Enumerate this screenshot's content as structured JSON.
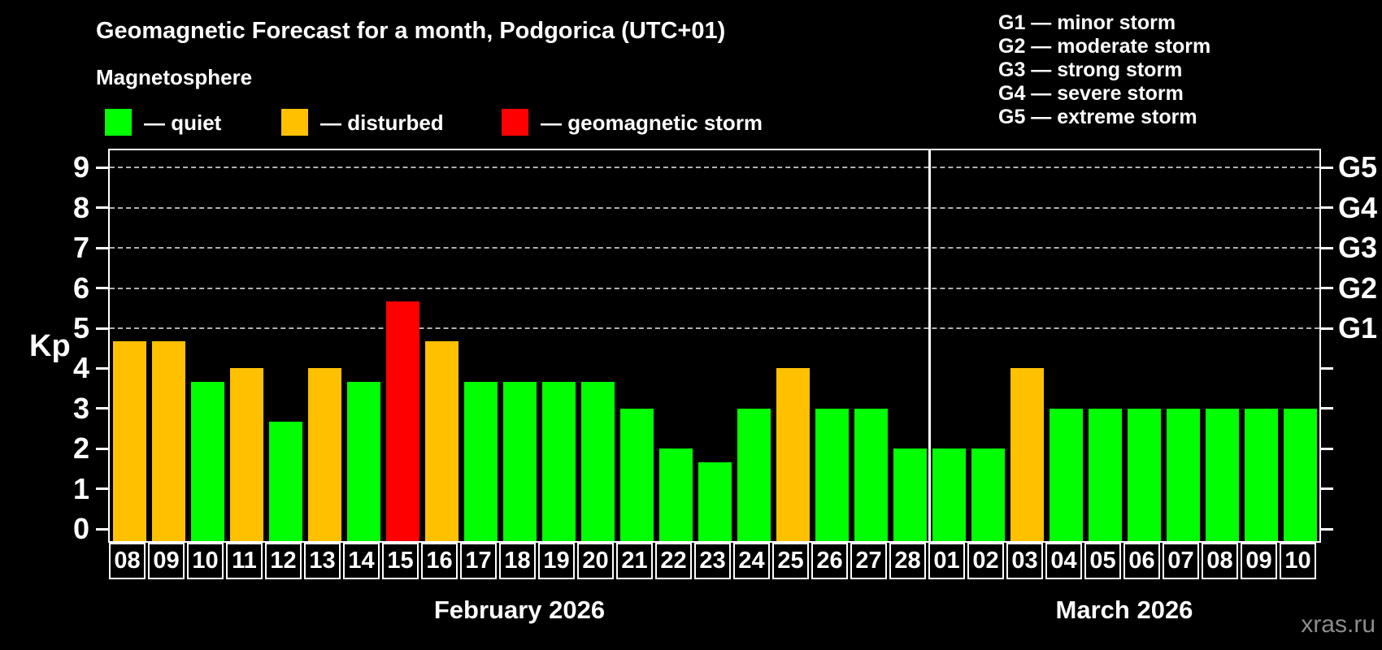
{
  "title": "Geomagnetic Forecast for a month, Podgorica (UTC+01)",
  "subtitle": "Magnetosphere",
  "bar_legend": [
    {
      "name": "quiet",
      "label": "— quiet",
      "color": "#00ff00"
    },
    {
      "name": "disturbed",
      "label": "— disturbed",
      "color": "#ffc000"
    },
    {
      "name": "storm",
      "label": "— geomagnetic storm",
      "color": "#ff0000"
    }
  ],
  "g_scale_legend": [
    {
      "label": "G1 — minor storm"
    },
    {
      "label": "G2 — moderate storm"
    },
    {
      "label": "G3 — strong storm"
    },
    {
      "label": "G4 — severe storm"
    },
    {
      "label": "G5 — extreme storm"
    }
  ],
  "watermark": "xras.ru",
  "chart_data": {
    "type": "bar",
    "title": "Geomagnetic Forecast for a month, Podgorica (UTC+01)",
    "xlabel": "",
    "ylabel": "Kp",
    "ylim": [
      0,
      9
    ],
    "yticks": [
      0,
      1,
      2,
      3,
      4,
      5,
      6,
      7,
      8,
      9
    ],
    "gridlines_at": [
      5,
      6,
      7,
      8,
      9
    ],
    "grid_style": "horizontal dashed at Kp 5–9",
    "legend_position": "top",
    "right_axis_labels": [
      {
        "kp": 5,
        "label": "G1"
      },
      {
        "kp": 6,
        "label": "G2"
      },
      {
        "kp": 7,
        "label": "G3"
      },
      {
        "kp": 8,
        "label": "G4"
      },
      {
        "kp": 9,
        "label": "G5"
      }
    ],
    "months": [
      {
        "label": "February 2026",
        "days": 21
      },
      {
        "label": "March 2026",
        "days": 10
      }
    ],
    "categories": [
      "08",
      "09",
      "10",
      "11",
      "12",
      "13",
      "14",
      "15",
      "16",
      "17",
      "18",
      "19",
      "20",
      "21",
      "22",
      "23",
      "24",
      "25",
      "26",
      "27",
      "28",
      "01",
      "02",
      "03",
      "04",
      "05",
      "06",
      "07",
      "08",
      "09",
      "10"
    ],
    "values": [
      4.67,
      4.67,
      3.67,
      4.0,
      2.67,
      4.0,
      3.67,
      5.67,
      4.67,
      3.67,
      3.67,
      3.67,
      3.67,
      3.0,
      2.0,
      1.67,
      3.0,
      4.0,
      3.0,
      3.0,
      2.0,
      2.0,
      2.0,
      4.0,
      3.0,
      3.0,
      3.0,
      3.0,
      3.0,
      3.0,
      3.0
    ],
    "statuses": [
      "disturbed",
      "disturbed",
      "quiet",
      "disturbed",
      "quiet",
      "disturbed",
      "quiet",
      "storm",
      "disturbed",
      "quiet",
      "quiet",
      "quiet",
      "quiet",
      "quiet",
      "quiet",
      "quiet",
      "quiet",
      "disturbed",
      "quiet",
      "quiet",
      "quiet",
      "quiet",
      "quiet",
      "disturbed",
      "quiet",
      "quiet",
      "quiet",
      "quiet",
      "quiet",
      "quiet",
      "quiet"
    ],
    "colors": {
      "quiet": "#00ff00",
      "disturbed": "#ffc000",
      "storm": "#ff0000"
    }
  }
}
